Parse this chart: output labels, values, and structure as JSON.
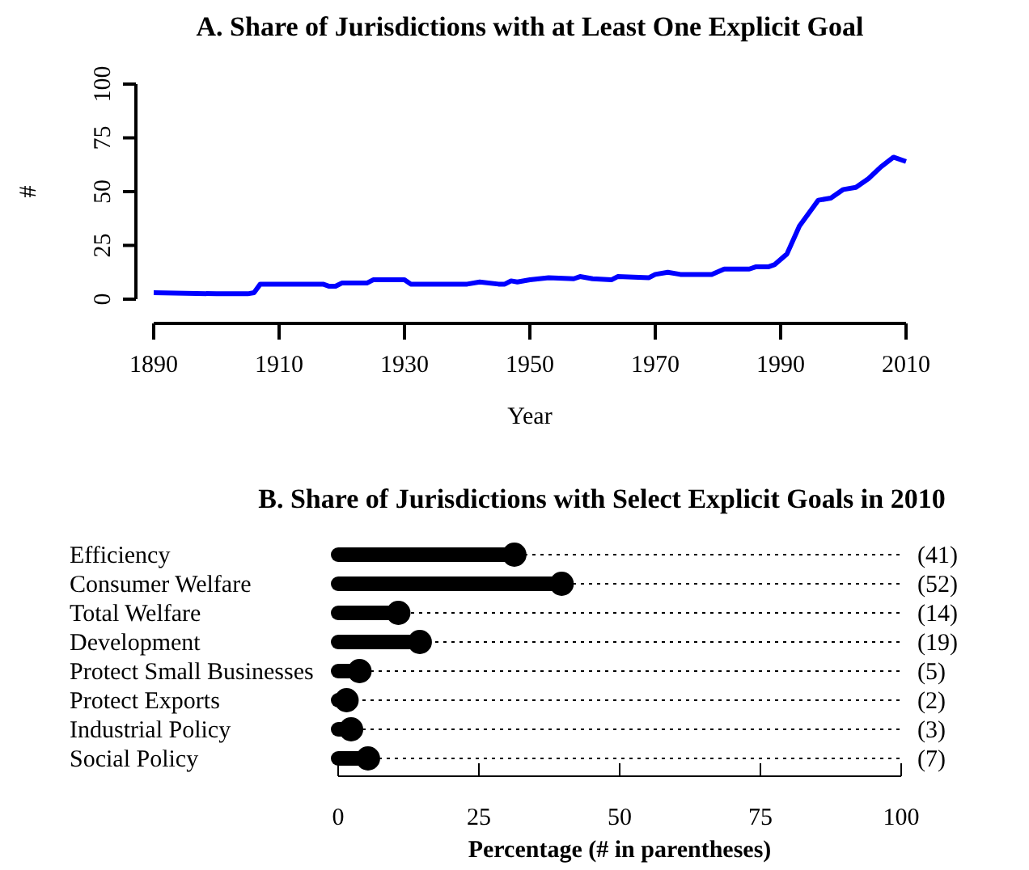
{
  "chart_data": [
    {
      "type": "line",
      "title": "A. Share of Jurisdictions with at Least One Explicit Goal",
      "xlabel": "Year",
      "ylabel": "#",
      "x": [
        1890,
        1900,
        1905,
        1906,
        1907,
        1917,
        1918,
        1919,
        1920,
        1924,
        1925,
        1930,
        1931,
        1940,
        1942,
        1945,
        1946,
        1947,
        1948,
        1950,
        1953,
        1957,
        1958,
        1960,
        1963,
        1964,
        1969,
        1970,
        1972,
        1974,
        1979,
        1981,
        1985,
        1986,
        1988,
        1989,
        1991,
        1993,
        1995,
        1996,
        1998,
        2000,
        2002,
        2004,
        2006,
        2008,
        2010
      ],
      "series": [
        {
          "color": "#0000ff",
          "values": [
            3,
            2.5,
            2.5,
            3,
            7,
            7,
            6,
            6,
            7.5,
            7.5,
            9,
            9,
            7,
            7,
            8,
            7,
            7,
            8.5,
            8,
            9,
            10,
            9.5,
            10.5,
            9.5,
            9,
            10.5,
            10,
            11.5,
            12.5,
            11.5,
            11.5,
            14,
            14,
            15,
            15,
            16,
            21,
            34,
            42,
            46,
            47,
            51,
            52,
            56,
            61.5,
            66,
            64
          ]
        }
      ],
      "xlim": [
        1890,
        2010
      ],
      "xticks": [
        1890,
        1910,
        1930,
        1950,
        1970,
        1990,
        2010
      ],
      "ylim": [
        0,
        100
      ],
      "yticks": [
        0,
        25,
        50,
        75,
        100
      ],
      "grid": false,
      "line_style": "solid"
    },
    {
      "type": "lollipop",
      "orientation": "horizontal",
      "title": "B. Share of Jurisdictions with Select Explicit Goals in 2010",
      "xlabel": "Percentage (# in parentheses)",
      "categories": [
        "Efficiency",
        "Consumer Welfare",
        "Total Welfare",
        "Development",
        "Protect Small Businesses",
        "Protect Exports",
        "Industrial Policy",
        "Social Policy"
      ],
      "values": [
        31.3,
        39.7,
        10.7,
        14.5,
        3.8,
        1.5,
        2.3,
        5.3
      ],
      "annotations": [
        "(41)",
        "(52)",
        "(14)",
        "(19)",
        "(5)",
        "(2)",
        "(3)",
        "(7)"
      ],
      "color": "#000000",
      "xlim": [
        0,
        100
      ],
      "xticks": [
        0,
        25,
        50,
        75,
        100
      ],
      "grid": "y"
    }
  ]
}
